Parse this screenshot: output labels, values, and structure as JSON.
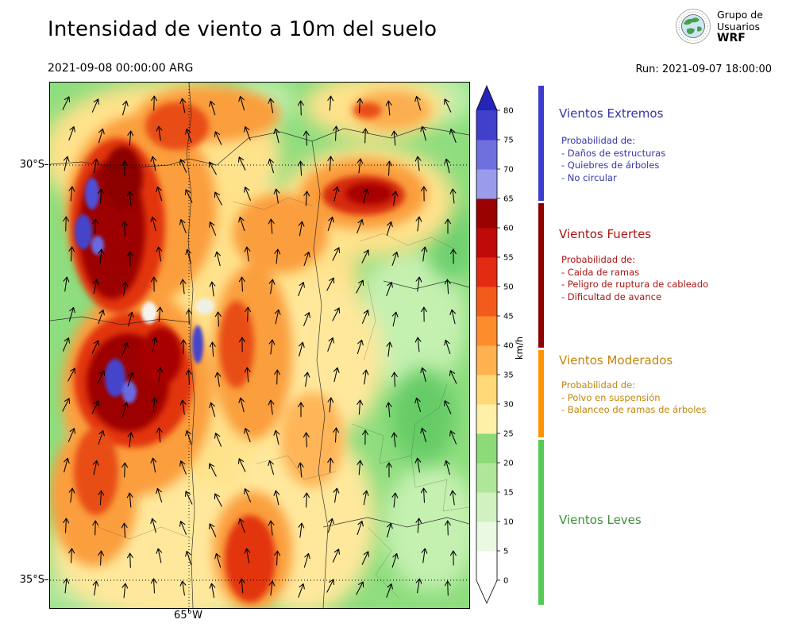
{
  "header": {
    "title": "Intensidad de viento a 10m del suelo",
    "valid_time": "2021-09-08 00:00:00 ARG",
    "run_time": "Run: 2021-09-07 18:00:00",
    "logo_line1": "Grupo de",
    "logo_line2": "Usuarios",
    "logo_line3": "WRF"
  },
  "map_panel": {
    "lat_labels": [
      "30°S",
      "35°S"
    ],
    "lon_labels": [
      "65°W"
    ]
  },
  "colorbar": {
    "unit": "km/h",
    "tick_max": 80,
    "ticks": [
      0,
      5,
      10,
      15,
      20,
      25,
      30,
      35,
      40,
      45,
      50,
      55,
      60,
      65,
      70,
      75,
      80
    ],
    "segment_colors": [
      "#ffffff",
      "#e9f9e2",
      "#d0f1c0",
      "#b0e69a",
      "#8cda78",
      "#fff0a8",
      "#ffd878",
      "#ffb24f",
      "#fd8d2c",
      "#f25b1c",
      "#e22b12",
      "#c00909",
      "#9a0202",
      "#9b9bec",
      "#6f6fdd",
      "#4040cc"
    ],
    "over_color": "#2424b8",
    "under_color": "#ffffff"
  },
  "legend_sections": [
    {
      "title": "Vientos Extremos",
      "text_color": "#3535a8",
      "bar_color": "#3c3ccc",
      "lines": [
        "Probabilidad de:",
        "- Daños de estructuras",
        "- Quiebres de árboles",
        "- No circular"
      ]
    },
    {
      "title": "Vientos Fuertes",
      "text_color": "#aa1414",
      "bar_color": "#8e0000",
      "lines": [
        "Probabilidad de:",
        "- Caida de ramas",
        "- Peligro de ruptura de cableado",
        "- Dificultad de avance"
      ]
    },
    {
      "title": "Vientos Moderados",
      "text_color": "#c1860b",
      "bar_color": "#ff9400",
      "lines": [
        "Probabilidad de:",
        "- Polvo en suspensión",
        "- Balanceo de ramas de árboles"
      ]
    },
    {
      "title": "Vientos Leves",
      "text_color": "#3f8f3f",
      "bar_color": "#55cb55",
      "lines": []
    }
  ],
  "chart_data": {
    "type": "heatmap",
    "title": "Intensidad de viento a 10m del suelo",
    "valid_time": "2021-09-08 00:00:00 ARG",
    "run_time": "Run: 2021-09-07 18:00:00",
    "variable": "wind-speed-10m",
    "unit": "km/h",
    "colorbar_ticks": [
      0,
      5,
      10,
      15,
      20,
      25,
      30,
      35,
      40,
      45,
      50,
      55,
      60,
      65,
      70,
      75,
      80
    ],
    "colorbar_extend": "both",
    "lat_gridlines": [
      "30°S",
      "35°S"
    ],
    "lon_gridlines": [
      "65°W"
    ],
    "categories": [
      {
        "label": "Vientos Leves",
        "range_kmh": [
          0,
          25
        ]
      },
      {
        "label": "Vientos Moderados",
        "range_kmh": [
          25,
          40
        ]
      },
      {
        "label": "Vientos Fuertes",
        "range_kmh": [
          40,
          65
        ]
      },
      {
        "label": "Vientos Extremos",
        "range_kmh": [
          65,
          80
        ]
      }
    ]
  }
}
